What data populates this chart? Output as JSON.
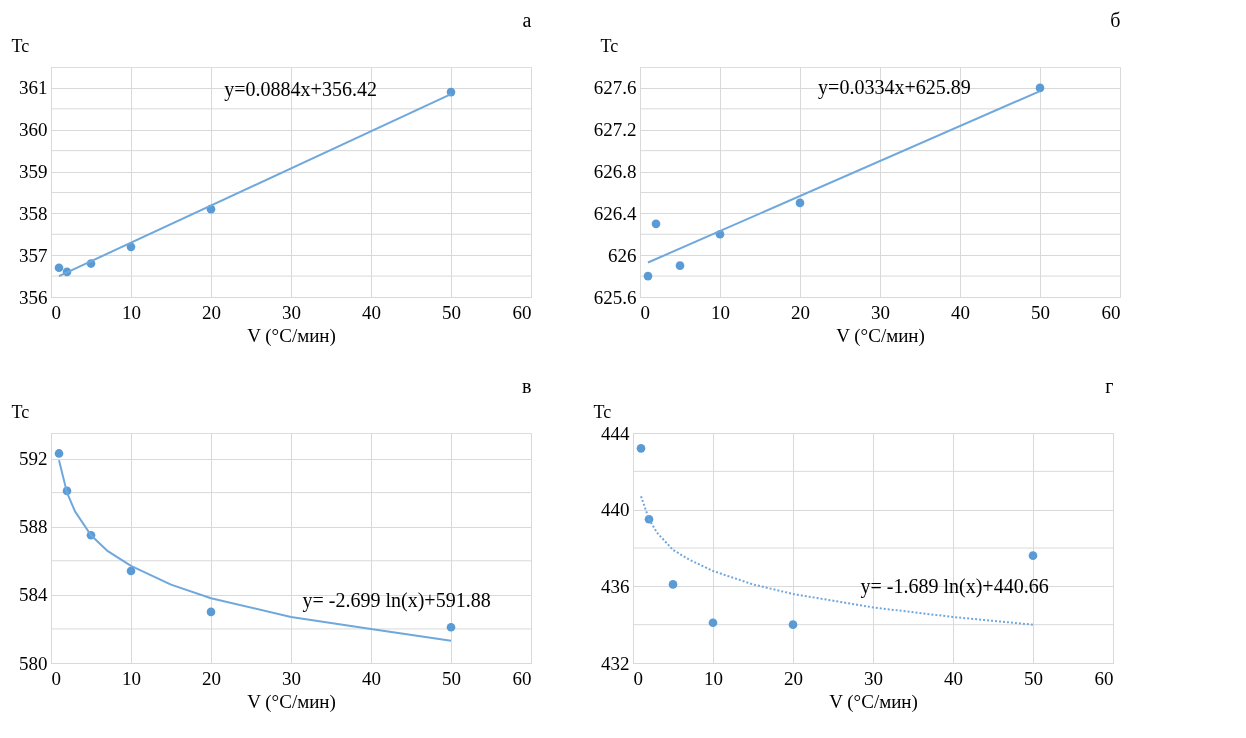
{
  "chart_data": [
    {
      "type": "scatter",
      "title": "а",
      "xlabel": "V (°C/мин)",
      "ylabel": "Tc",
      "xlim": [
        0,
        60
      ],
      "xticks": [
        0,
        10,
        20,
        30,
        40,
        50,
        60
      ],
      "ylim": [
        356,
        361.5
      ],
      "yticks": [
        356,
        {
          "value": 356.5,
          "label": null
        },
        357,
        {
          "value": 357.5,
          "label": null
        },
        358,
        {
          "value": 358.5,
          "label": null
        },
        359,
        {
          "value": 359.5,
          "label": null
        },
        360,
        {
          "value": 360.5,
          "label": null
        },
        361
      ],
      "grid": true,
      "annotations": [
        "y=0.0884x+356.42"
      ],
      "series": [
        {
          "color": "#5b9bd5",
          "marker": "circle",
          "x": [
            1,
            2,
            5,
            10,
            20,
            50
          ],
          "values": [
            356.7,
            356.6,
            356.8,
            357.2,
            358.1,
            360.9
          ]
        },
        {
          "type": "line",
          "color": "#6fa8dc",
          "line_style": "solid",
          "x": [
            1,
            50
          ],
          "values": [
            356.5,
            360.85
          ]
        }
      ]
    },
    {
      "type": "scatter",
      "title": "б",
      "xlabel": "V (°C/мин)",
      "ylabel": "Tc",
      "xlim": [
        0,
        60
      ],
      "xticks": [
        0,
        10,
        20,
        30,
        40,
        50,
        60
      ],
      "ylim": [
        625.6,
        627.8
      ],
      "yticks": [
        625.6,
        {
          "value": 625.8,
          "label": null
        },
        626,
        {
          "value": 626.2,
          "label": null
        },
        626.4,
        {
          "value": 626.6,
          "label": null
        },
        626.8,
        {
          "value": 627.0,
          "label": null
        },
        627.2,
        {
          "value": 627.4,
          "label": null
        },
        627.6
      ],
      "grid": true,
      "annotations": [
        "y=0.0334x+625.89"
      ],
      "series": [
        {
          "color": "#5b9bd5",
          "marker": "circle",
          "x": [
            1,
            2,
            5,
            10,
            20,
            50
          ],
          "values": [
            625.8,
            626.3,
            625.9,
            626.2,
            626.5,
            627.6
          ]
        },
        {
          "type": "line",
          "color": "#6fa8dc",
          "line_style": "solid",
          "x": [
            1,
            50
          ],
          "values": [
            625.93,
            627.57
          ]
        }
      ]
    },
    {
      "type": "scatter",
      "title": "в",
      "xlabel": "V (°C/мин)",
      "ylabel": "Tc",
      "xlim": [
        0,
        60
      ],
      "xticks": [
        0,
        10,
        20,
        30,
        40,
        50,
        60
      ],
      "ylim": [
        580,
        593.5
      ],
      "yticks": [
        580,
        {
          "value": 582,
          "label": null
        },
        584,
        {
          "value": 586,
          "label": null
        },
        588,
        {
          "value": 590,
          "label": null
        },
        592
      ],
      "grid": true,
      "annotations": [
        "y= -2.699 ln(x)+591.88"
      ],
      "series": [
        {
          "color": "#5b9bd5",
          "marker": "circle",
          "x": [
            1,
            2,
            5,
            10,
            20,
            50
          ],
          "values": [
            592.3,
            590.1,
            587.5,
            585.4,
            583.0,
            582.1
          ]
        },
        {
          "type": "line",
          "color": "#6fa8dc",
          "line_style": "solid",
          "x": [
            1,
            2,
            3,
            5,
            7,
            10,
            15,
            20,
            30,
            40,
            50
          ],
          "values": [
            591.9,
            590.0,
            588.9,
            587.5,
            586.6,
            585.7,
            584.6,
            583.8,
            582.7,
            582.0,
            581.3
          ]
        }
      ]
    },
    {
      "type": "scatter",
      "title": "г",
      "xlabel": "V (°C/мин)",
      "ylabel": "Tc",
      "xlim": [
        0,
        60
      ],
      "xticks": [
        0,
        10,
        20,
        30,
        40,
        50,
        60
      ],
      "ylim": [
        432,
        444
      ],
      "yticks": [
        432,
        {
          "value": 434,
          "label": null
        },
        436,
        {
          "value": 438,
          "label": null
        },
        440,
        {
          "value": 442,
          "label": null
        },
        444
      ],
      "grid": true,
      "annotations": [
        "y= -1.689 ln(x)+440.66"
      ],
      "series": [
        {
          "color": "#5b9bd5",
          "marker": "circle",
          "x": [
            1,
            2,
            5,
            10,
            20,
            50
          ],
          "values": [
            443.2,
            439.5,
            436.1,
            434.1,
            434.0,
            437.6
          ]
        },
        {
          "type": "line",
          "color": "#6fa8dc",
          "line_style": "dotted",
          "x": [
            1,
            2,
            3,
            5,
            7,
            10,
            15,
            20,
            30,
            40,
            50
          ],
          "values": [
            440.7,
            439.5,
            438.8,
            437.9,
            437.4,
            436.8,
            436.1,
            435.6,
            434.9,
            434.4,
            434.0
          ]
        }
      ]
    }
  ]
}
